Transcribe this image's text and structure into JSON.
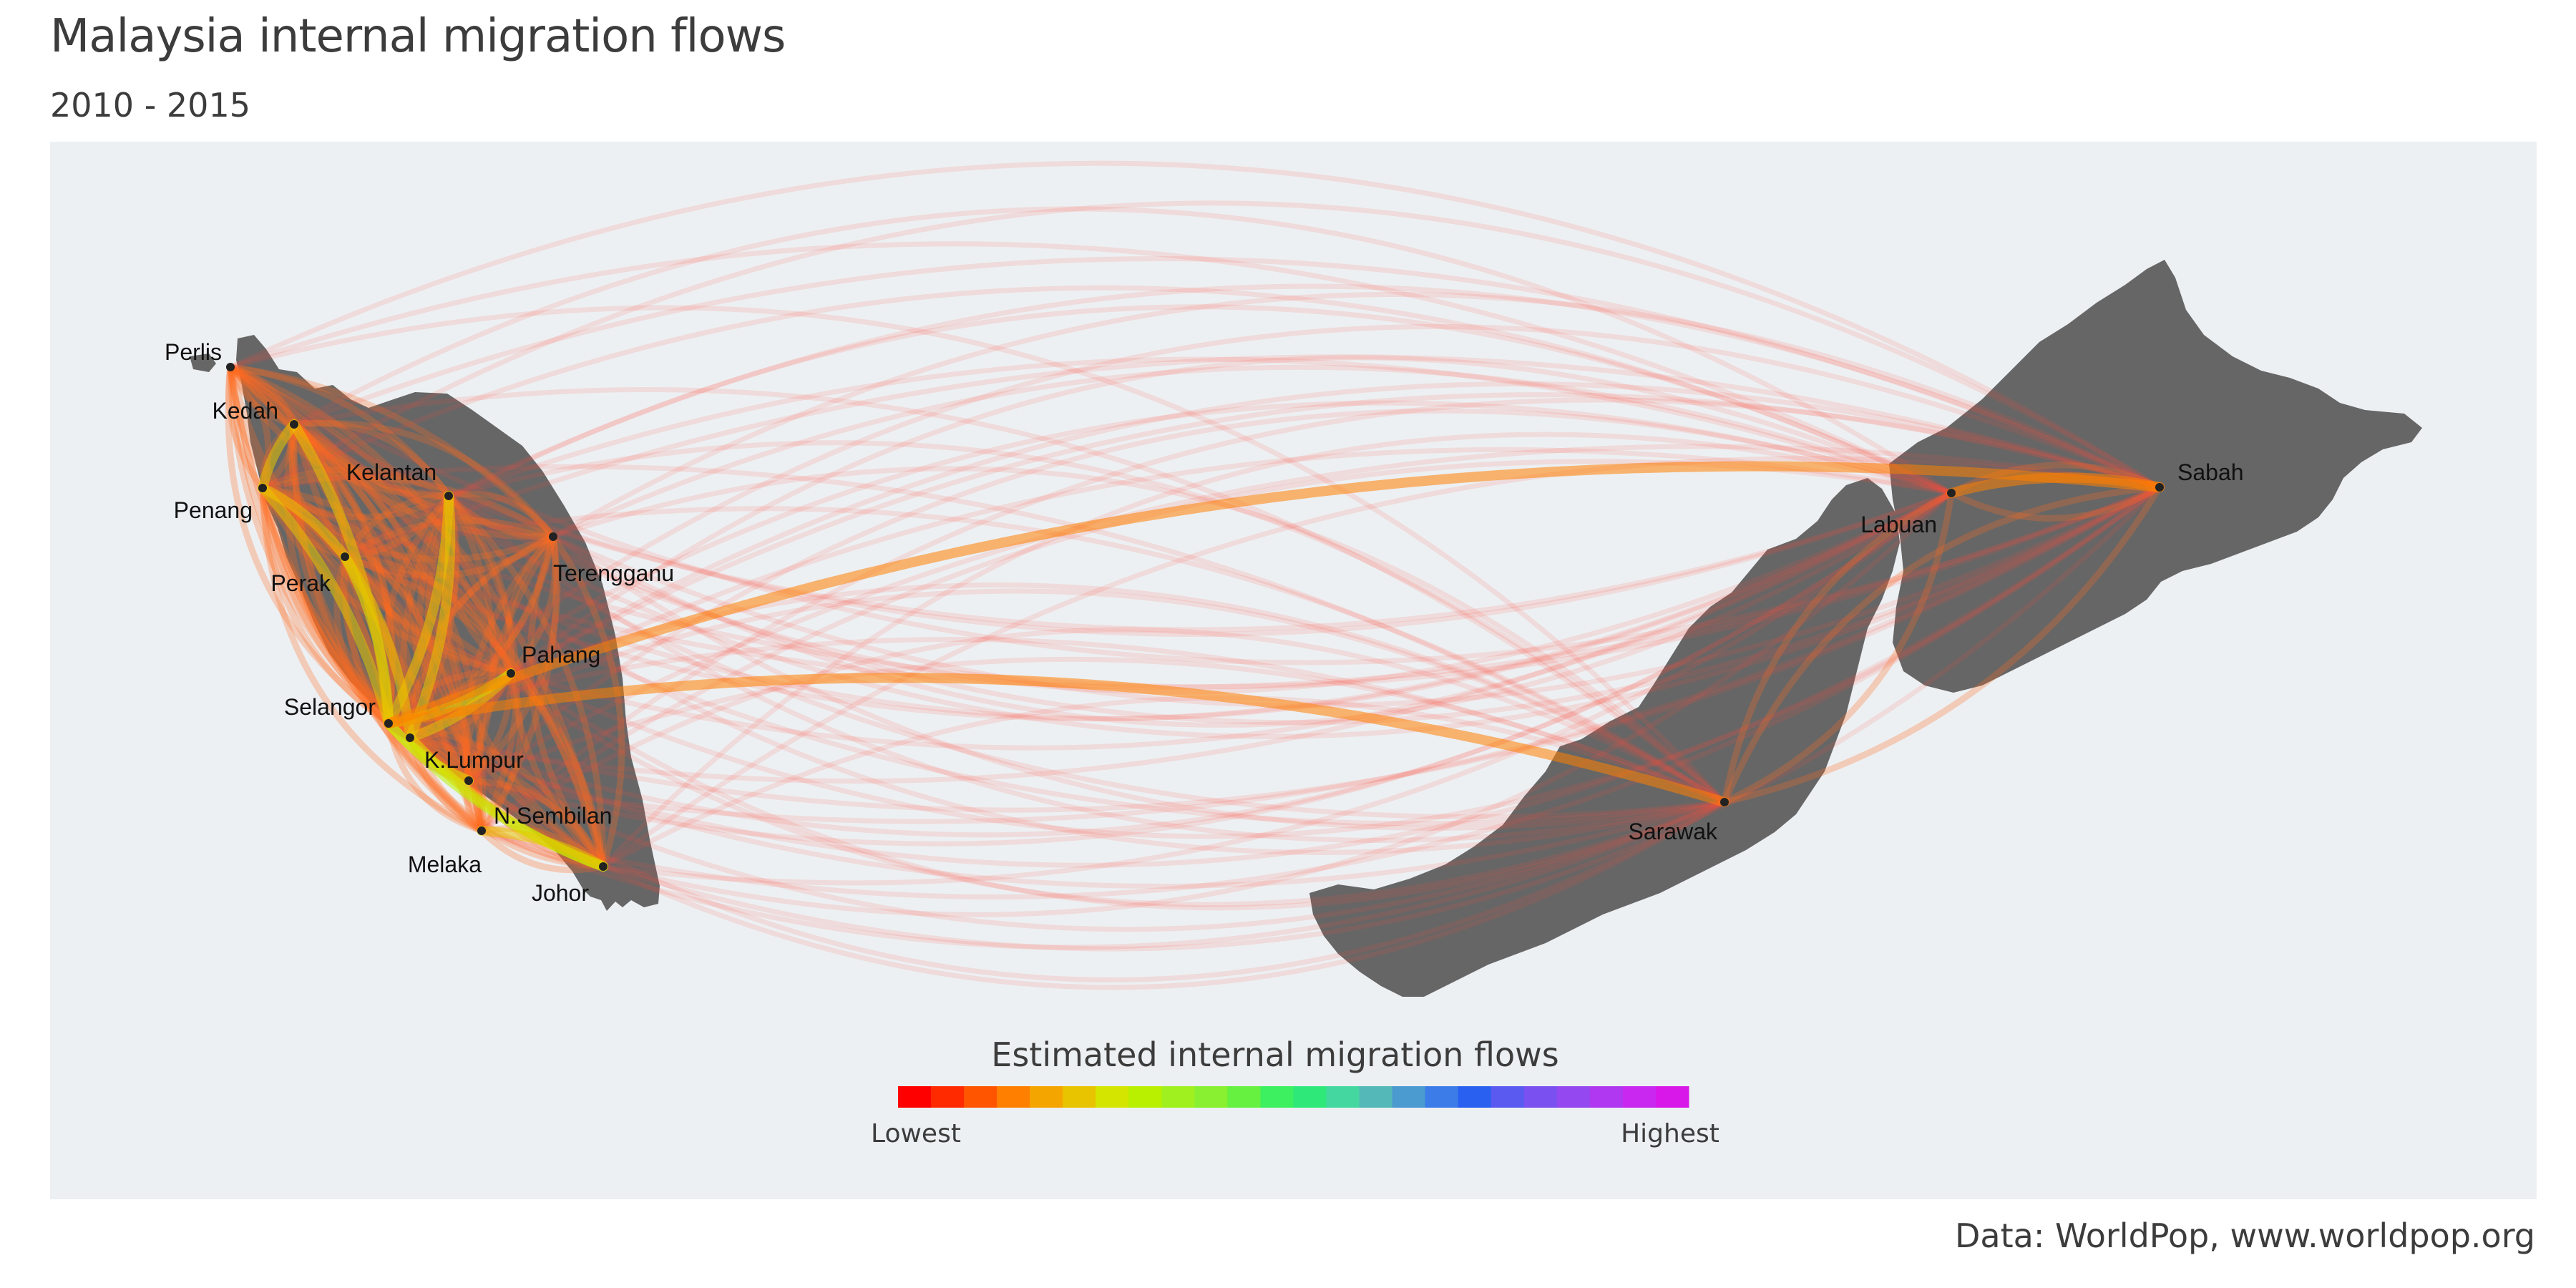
{
  "title": "Malaysia internal migration flows",
  "subtitle": "2010 - 2015",
  "caption": "Data: WorldPop, www.worldpop.org",
  "colors": {
    "panel_bg": "#edf0f3",
    "land": "#666666",
    "node": "#222222",
    "label": "#111111"
  },
  "legend": {
    "title": "Estimated internal migration flows",
    "low_label": "Lowest",
    "high_label": "Highest",
    "colors": [
      "#ff0000",
      "#ff2a00",
      "#ff5500",
      "#ff7f00",
      "#f4a500",
      "#e8c400",
      "#d4e600",
      "#b8f000",
      "#a0f020",
      "#88f030",
      "#66f040",
      "#3cf060",
      "#2ee87a",
      "#44d8a0",
      "#55b8b8",
      "#4b9ad0",
      "#3c7ce8",
      "#2a60f0",
      "#5a5af0",
      "#7a50f0",
      "#9448f0",
      "#b038f0",
      "#c828f0",
      "#d818e8"
    ]
  },
  "nodes": [
    {
      "name": "Perlis",
      "label": "Perlis"
    },
    {
      "name": "Kedah",
      "label": "Kedah"
    },
    {
      "name": "Penang",
      "label": "Penang"
    },
    {
      "name": "Kelantan",
      "label": "Kelantan"
    },
    {
      "name": "Perak",
      "label": "Perak"
    },
    {
      "name": "Terengganu",
      "label": "Terengganu"
    },
    {
      "name": "Pahang",
      "label": "Pahang"
    },
    {
      "name": "Selangor",
      "label": "Selangor"
    },
    {
      "name": "K.Lumpur",
      "label": "K.Lumpur"
    },
    {
      "name": "N.Sembilan",
      "label": "N.Sembilan"
    },
    {
      "name": "Melaka",
      "label": "Melaka"
    },
    {
      "name": "Johor",
      "label": "Johor"
    },
    {
      "name": "Sarawak",
      "label": "Sarawak"
    },
    {
      "name": "Labuan",
      "label": "Labuan"
    },
    {
      "name": "Sabah",
      "label": "Sabah"
    }
  ],
  "strong_flows": [
    {
      "from": "Selangor",
      "to": "K.Lumpur",
      "level": 0.9
    },
    {
      "from": "Selangor",
      "to": "Johor",
      "level": 0.3
    },
    {
      "from": "Selangor",
      "to": "Perak",
      "level": 0.28
    },
    {
      "from": "Selangor",
      "to": "Pahang",
      "level": 0.26
    },
    {
      "from": "Selangor",
      "to": "Kelantan",
      "level": 0.22
    },
    {
      "from": "Selangor",
      "to": "Kedah",
      "level": 0.22
    },
    {
      "from": "Selangor",
      "to": "N.Sembilan",
      "level": 0.24
    },
    {
      "from": "Selangor",
      "to": "Penang",
      "level": 0.2
    },
    {
      "from": "K.Lumpur",
      "to": "Johor",
      "level": 0.25
    },
    {
      "from": "K.Lumpur",
      "to": "Perak",
      "level": 0.22
    },
    {
      "from": "K.Lumpur",
      "to": "Pahang",
      "level": 0.22
    },
    {
      "from": "K.Lumpur",
      "to": "Kelantan",
      "level": 0.2
    },
    {
      "from": "Perak",
      "to": "Penang",
      "level": 0.2
    },
    {
      "from": "Kedah",
      "to": "Penang",
      "level": 0.2
    },
    {
      "from": "Johor",
      "to": "Melaka",
      "level": 0.2
    },
    {
      "from": "Sabah",
      "to": "Labuan",
      "level": 0.12
    },
    {
      "from": "Sarawak",
      "to": "Selangor",
      "level": 0.12
    },
    {
      "from": "Sabah",
      "to": "Selangor",
      "level": 0.12
    }
  ]
}
